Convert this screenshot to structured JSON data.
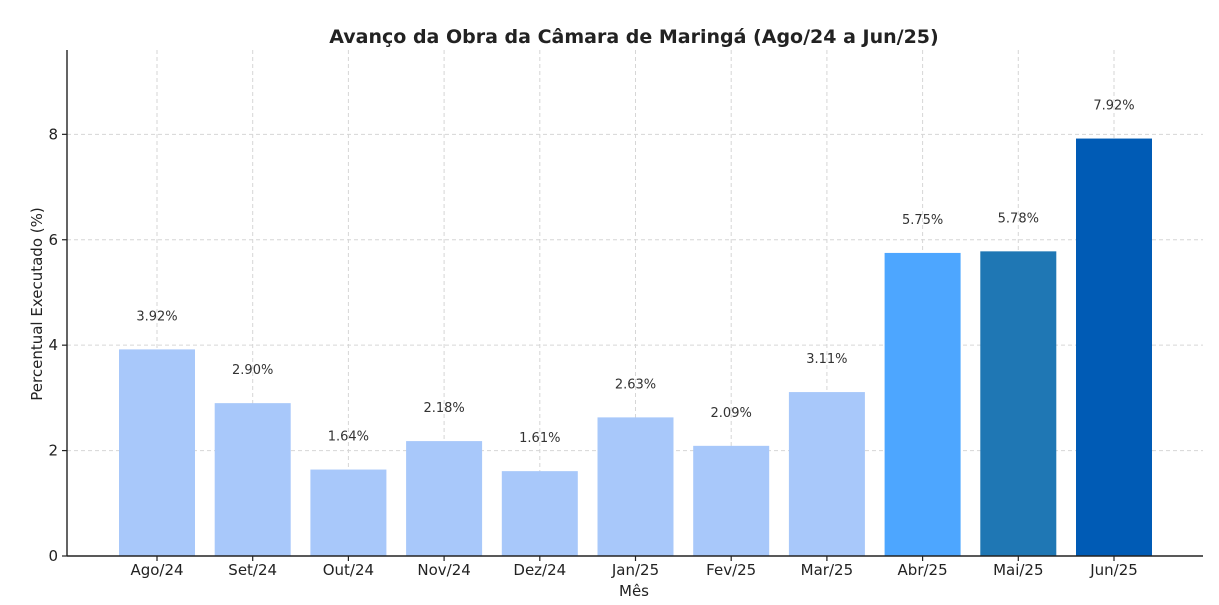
{
  "chart_data": {
    "type": "bar",
    "title": "Avanço da Obra da Câmara de Maringá (Ago/24 a Jun/25)",
    "xlabel": "Mês",
    "ylabel": "Percentual Executado (%)",
    "categories": [
      "Ago/24",
      "Set/24",
      "Out/24",
      "Nov/24",
      "Dez/24",
      "Jan/25",
      "Fev/25",
      "Mar/25",
      "Abr/25",
      "Mai/25",
      "Jun/25"
    ],
    "values": [
      3.92,
      2.9,
      1.64,
      2.18,
      1.61,
      2.63,
      2.09,
      3.11,
      5.75,
      5.78,
      7.92
    ],
    "value_labels": [
      "3.92%",
      "2.90%",
      "1.64%",
      "2.18%",
      "1.61%",
      "2.63%",
      "2.09%",
      "3.11%",
      "5.75%",
      "5.78%",
      "7.92%"
    ],
    "bar_colors": [
      "#a8c8fa",
      "#a8c8fa",
      "#a8c8fa",
      "#a8c8fa",
      "#a8c8fa",
      "#a8c8fa",
      "#a8c8fa",
      "#a8c8fa",
      "#4da6ff",
      "#1f77b4",
      "#005bb5"
    ],
    "ylim": [
      0,
      9.6
    ],
    "yticks": [
      0,
      2,
      4,
      6,
      8
    ],
    "ytick_labels": [
      "0",
      "2",
      "4",
      "6",
      "8"
    ],
    "grid": true,
    "legend": "none"
  }
}
